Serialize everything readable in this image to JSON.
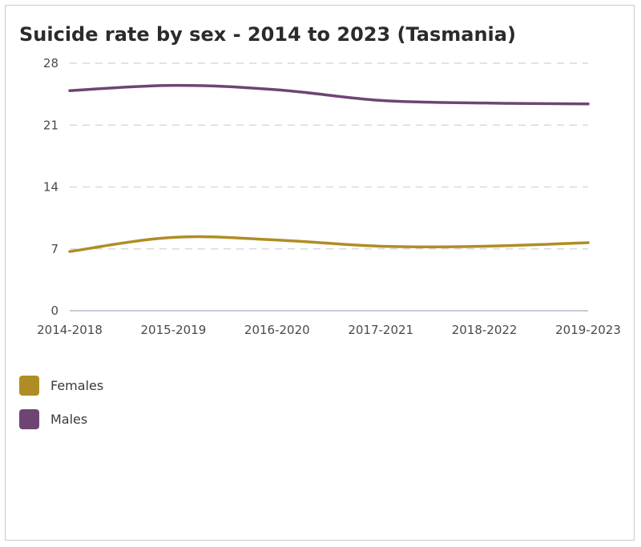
{
  "chart_data": {
    "type": "line",
    "title": "Suicide rate by sex - 2014 to 2023 (Tasmania)",
    "xlabel": "",
    "ylabel": "",
    "categories": [
      "2014-2018",
      "2015-2019",
      "2016-2020",
      "2017-2021",
      "2018-2022",
      "2019-2023"
    ],
    "ylim": [
      0,
      28
    ],
    "yticks": [
      "0",
      "7",
      "14",
      "21",
      "28"
    ],
    "grid": true,
    "legend_position": "bottom-left",
    "series": [
      {
        "name": "Females",
        "color": "#b08d24",
        "values": [
          6.7,
          8.3,
          8.0,
          7.3,
          7.3,
          7.7
        ]
      },
      {
        "name": "Males",
        "color": "#6e4572",
        "values": [
          24.9,
          25.5,
          25.0,
          23.8,
          23.5,
          23.4
        ]
      }
    ]
  }
}
